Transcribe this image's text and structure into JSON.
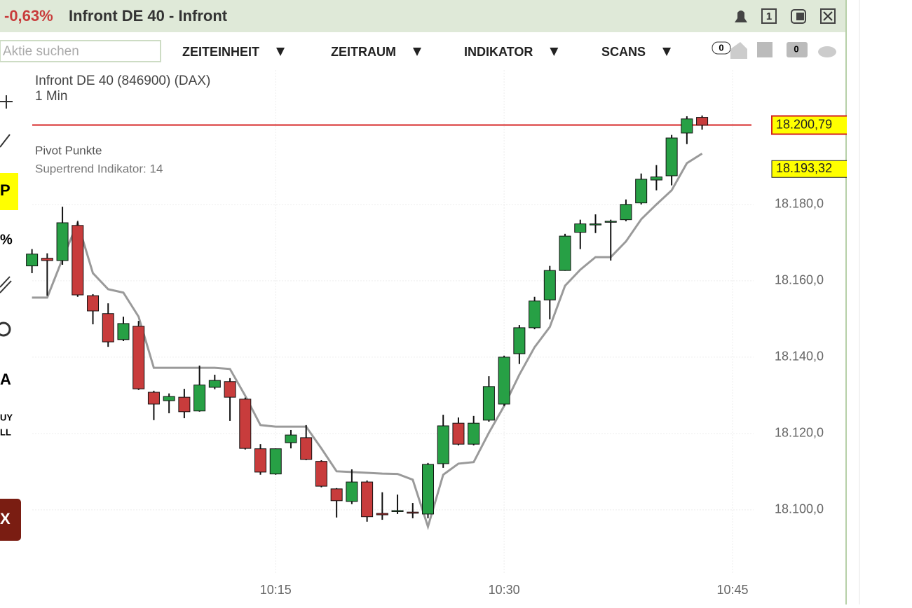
{
  "header": {
    "change": "-0,63%",
    "title": "Infront DE 40 - Infront",
    "buttons": [
      "1"
    ]
  },
  "toolbar": {
    "search_placeholder": "Aktie suchen",
    "menus": [
      "ZEITEINHEIT",
      "ZEITRAUM",
      "INDIKATOR",
      "SCANS"
    ],
    "badges": [
      "0",
      "0"
    ]
  },
  "left_toolbar": [
    "P",
    "%",
    "A",
    "UY",
    "LL",
    "X"
  ],
  "chart_data": {
    "type": "candlestick",
    "title": "Infront DE 40 (846900) (DAX)",
    "subtitle": "1 Min",
    "indicators": [
      "Pivot Punkte",
      "Supertrend Indikator: 14"
    ],
    "x": [
      599,
      600,
      601,
      602,
      603,
      604,
      605,
      606,
      607,
      608,
      609,
      610,
      611,
      612,
      613,
      614,
      615,
      616,
      617,
      618,
      619,
      620,
      621,
      622,
      623,
      624,
      625,
      626,
      627,
      628,
      629,
      630,
      631,
      632,
      633,
      634,
      635,
      636,
      637,
      638,
      639,
      640,
      641,
      642,
      643
    ],
    "open": [
      18163.9,
      18165.9,
      18165.3,
      18174.5,
      18156.1,
      18151.4,
      18144.6,
      18148.1,
      18130.8,
      18128.6,
      18129.5,
      18125.9,
      18132.1,
      18133.6,
      18129.0,
      18116.0,
      18109.4,
      18117.6,
      18118.9,
      18112.7,
      18105.5,
      18102.2,
      18107.3,
      18099.1,
      18099.6,
      18099.4,
      18098.9,
      18112.1,
      18122.7,
      18117.2,
      18123.5,
      18127.7,
      18140.9,
      18147.7,
      18155.0,
      18162.7,
      18172.7,
      18174.7,
      18175.4,
      18176.0,
      18180.4,
      18186.4,
      18187.5,
      18198.7,
      18202.8
    ],
    "high": [
      18168.3,
      18167.2,
      18179.4,
      18175.6,
      18156.5,
      18154.1,
      18150.6,
      18149.5,
      18131.2,
      18130.5,
      18131.7,
      18137.8,
      18135.4,
      18134.5,
      18129.4,
      18117.2,
      18116.1,
      18120.9,
      18122.2,
      18113.0,
      18105.7,
      18110.6,
      18107.7,
      18104.6,
      18104.0,
      18101.8,
      18112.3,
      18124.9,
      18124.2,
      18124.6,
      18135.0,
      18140.4,
      18148.4,
      18155.8,
      18163.9,
      18172.3,
      18176.0,
      18177.4,
      18176.0,
      18181.3,
      18188.1,
      18190.3,
      18198.2,
      18203.1,
      18203.3
    ],
    "low": [
      18162.0,
      18156.1,
      18164.2,
      18155.8,
      18148.6,
      18142.7,
      18144.2,
      18131.4,
      18123.5,
      18125.3,
      18124.0,
      18125.7,
      18131.6,
      18123.3,
      18115.8,
      18109.2,
      18109.2,
      18116.1,
      18113.0,
      18105.9,
      18098.0,
      18101.5,
      18096.9,
      18097.4,
      18098.9,
      18097.8,
      18097.8,
      18111.0,
      18116.9,
      18116.9,
      18123.1,
      18127.2,
      18138.2,
      18147.3,
      18149.9,
      18162.6,
      18168.3,
      18172.5,
      18165.3,
      18175.6,
      18180.0,
      18183.7,
      18185.0,
      18195.8,
      18199.6
    ],
    "close": [
      18167.0,
      18165.3,
      18175.2,
      18156.3,
      18152.1,
      18144.0,
      18148.8,
      18131.7,
      18127.7,
      18129.7,
      18125.7,
      18132.7,
      18133.9,
      18129.5,
      18116.1,
      18109.9,
      18116.0,
      18119.6,
      18113.2,
      18106.2,
      18102.4,
      18107.3,
      18098.2,
      18098.7,
      18099.8,
      18099.3,
      18111.9,
      18122.0,
      18117.2,
      18122.7,
      18132.3,
      18140.0,
      18147.7,
      18154.7,
      18162.7,
      18171.7,
      18174.9,
      18174.9,
      18175.6,
      18180.0,
      18186.6,
      18187.2,
      18197.4,
      18202.4,
      18200.79
    ],
    "last_close_label": "18.200,79",
    "up_color": "#27a045",
    "down_color": "#c83c3c",
    "price_line_color": "#d42020",
    "supertrend": {
      "color": "#9a9a9a",
      "last_label": "18.193,32",
      "values": [
        18155.6,
        18155.6,
        18165.7,
        18175.2,
        18162.0,
        18157.8,
        18156.9,
        18150.6,
        18137.2,
        18137.2,
        18137.2,
        18137.2,
        18137.2,
        18136.9,
        18129.9,
        18122.2,
        18121.8,
        18121.8,
        18121.8,
        18116.1,
        18110.1,
        18109.9,
        18109.7,
        18109.5,
        18109.4,
        18107.9,
        18095.6,
        18109.2,
        18112.1,
        18112.5,
        18120.2,
        18127.2,
        18135.4,
        18142.6,
        18147.9,
        18158.7,
        18162.9,
        18166.2,
        18166.2,
        18170.3,
        18176.1,
        18180.0,
        18183.7,
        18190.8,
        18193.32
      ]
    },
    "xlim": [
      596.9,
      647.3
    ],
    "xticks": [
      {
        "value": 615,
        "label": "10:15"
      },
      {
        "value": 630,
        "label": "10:30"
      },
      {
        "value": 645,
        "label": "10:45"
      }
    ],
    "ylim": [
      18083.1,
      18215.2
    ],
    "yticks": [
      {
        "value": 18100,
        "label": "18.100,0"
      },
      {
        "value": 18120,
        "label": "18.120,0"
      },
      {
        "value": 18140,
        "label": "18.140,0"
      },
      {
        "value": 18160,
        "label": "18.160,0"
      },
      {
        "value": 18180,
        "label": "18.180,0"
      }
    ],
    "grid": true
  }
}
